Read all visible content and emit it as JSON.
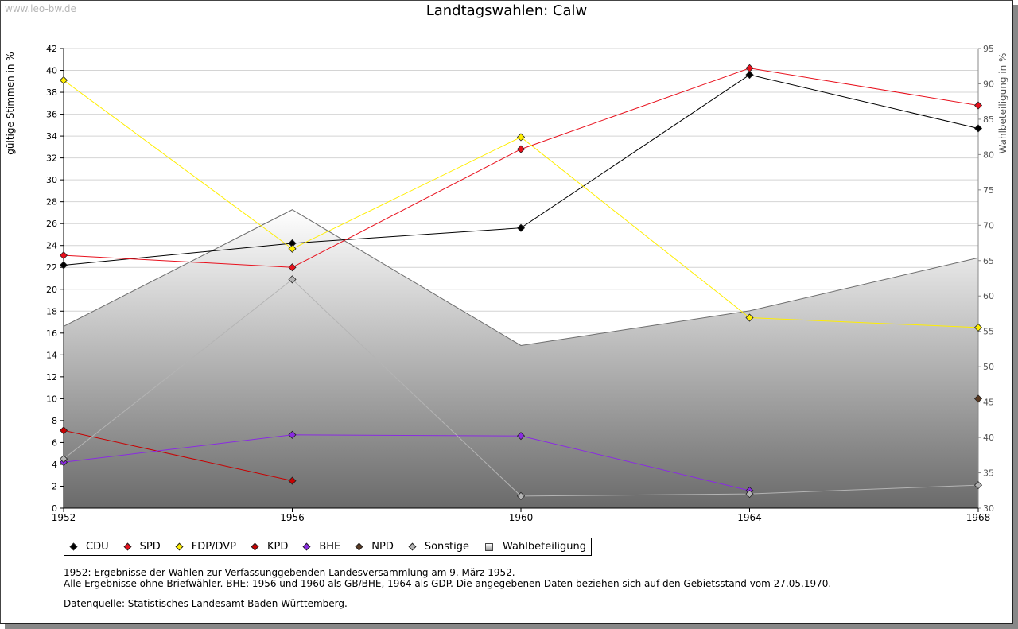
{
  "watermark": "www.leo-bw.de",
  "chart_data": {
    "type": "line",
    "title": "Landtagswahlen: Calw",
    "ylabel": "gültige Stimmen in %",
    "y2label": "Wahlbeteiligung in %",
    "x": [
      1952,
      1956,
      1960,
      1964,
      1968
    ],
    "ylim": [
      0,
      42
    ],
    "y2lim": [
      30,
      95
    ],
    "yticks": [
      0,
      2,
      4,
      6,
      8,
      10,
      12,
      14,
      16,
      18,
      20,
      22,
      24,
      26,
      28,
      30,
      32,
      34,
      36,
      38,
      40,
      42
    ],
    "y2ticks": [
      30,
      35,
      40,
      45,
      50,
      55,
      60,
      65,
      70,
      75,
      80,
      85,
      90,
      95
    ],
    "grid": true,
    "legend_position": "bottom",
    "series": [
      {
        "name": "CDU",
        "color": "#000000",
        "values": [
          22.2,
          24.2,
          25.6,
          39.6,
          34.7
        ]
      },
      {
        "name": "SPD",
        "color": "#e8101c",
        "values": [
          23.1,
          22.0,
          32.8,
          40.2,
          36.8
        ]
      },
      {
        "name": "FDP/DVP",
        "color": "#ffee00",
        "values": [
          39.1,
          23.7,
          33.9,
          17.4,
          16.5
        ]
      },
      {
        "name": "KPD",
        "color": "#c80000",
        "values": [
          7.1,
          2.5,
          null,
          null,
          null
        ]
      },
      {
        "name": "BHE",
        "color": "#8a2be2",
        "values": [
          4.2,
          6.7,
          6.6,
          1.6,
          null
        ]
      },
      {
        "name": "NPD",
        "color": "#5a3a22",
        "values": [
          null,
          null,
          null,
          null,
          10.0
        ]
      },
      {
        "name": "Sonstige",
        "color": "#b4b4b4",
        "values": [
          4.5,
          20.9,
          1.1,
          1.3,
          2.1
        ]
      }
    ],
    "area": {
      "name": "Wahlbeteiligung",
      "axis": "right",
      "values": [
        55.7,
        72.2,
        53.0,
        57.9,
        65.4
      ]
    }
  },
  "legend": [
    {
      "label": "CDU",
      "color": "#000000",
      "kind": "diamond"
    },
    {
      "label": "SPD",
      "color": "#e8101c",
      "kind": "diamond"
    },
    {
      "label": "FDP/DVP",
      "color": "#ffee00",
      "kind": "diamond"
    },
    {
      "label": "KPD",
      "color": "#c80000",
      "kind": "diamond"
    },
    {
      "label": "BHE",
      "color": "#8a2be2",
      "kind": "diamond"
    },
    {
      "label": "NPD",
      "color": "#5a3a22",
      "kind": "diamond"
    },
    {
      "label": "Sonstige",
      "color": "#b4b4b4",
      "kind": "diamond"
    },
    {
      "label": "Wahlbeteiligung",
      "color": "#c8c8c8",
      "kind": "box"
    }
  ],
  "notes": {
    "line1": "1952: Ergebnisse der Wahlen zur Verfassunggebenden Landesversammlung am 9. März 1952.",
    "line2": "Alle Ergebnisse ohne Briefwähler. BHE: 1956 und 1960 als GB/BHE, 1964 als GDP. Die angegebenen Daten beziehen sich auf den Gebietsstand vom 27.05.1970.",
    "source": "Datenquelle: Statistisches Landesamt Baden-Württemberg."
  }
}
